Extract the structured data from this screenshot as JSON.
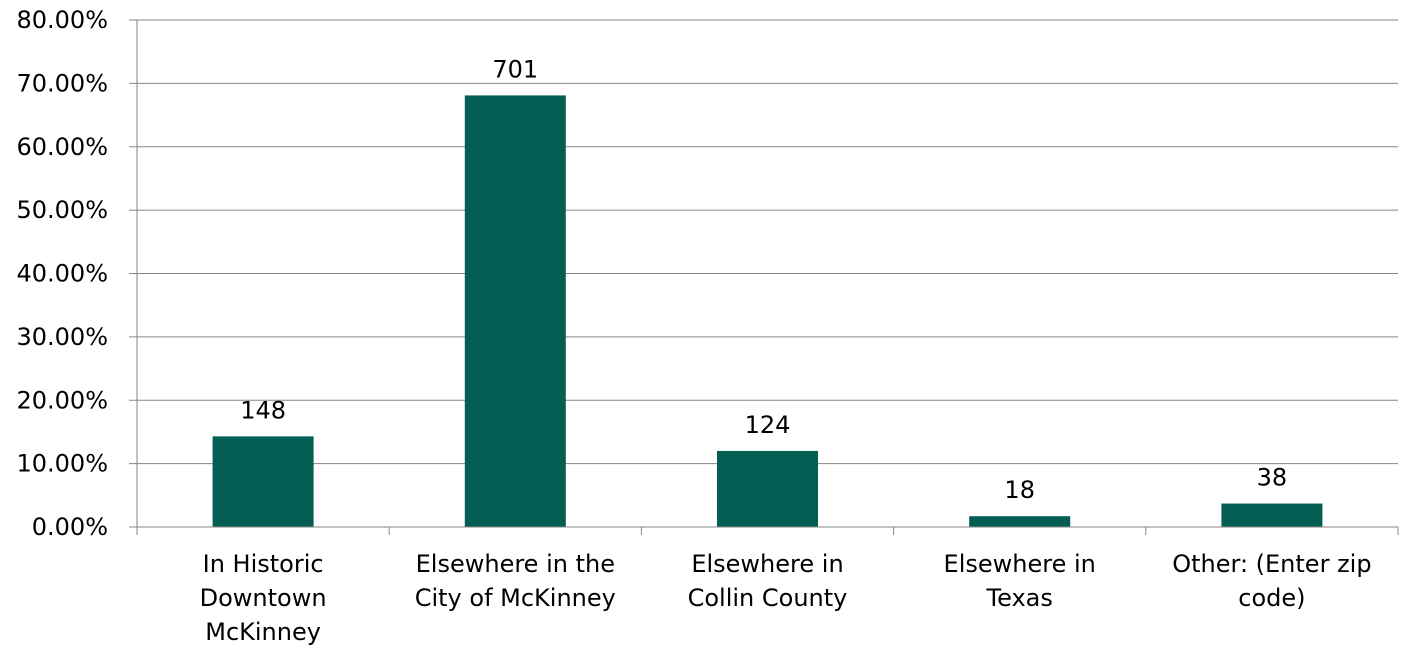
{
  "chart_data": {
    "type": "bar",
    "categories": [
      [
        "In Historic",
        "Downtown",
        "McKinney"
      ],
      [
        "Elsewhere in the",
        "City of McKinney"
      ],
      [
        "Elsewhere in",
        "Collin County"
      ],
      [
        "Elsewhere in",
        "Texas"
      ],
      [
        "Other: (Enter zip",
        "code)"
      ]
    ],
    "values": [
      14.3,
      68.1,
      12.0,
      1.7,
      3.7
    ],
    "data_labels": [
      "148",
      "701",
      "124",
      "18",
      "38"
    ],
    "y_ticks": [
      "0.00%",
      "10.00%",
      "20.00%",
      "30.00%",
      "40.00%",
      "50.00%",
      "60.00%",
      "70.00%",
      "80.00%"
    ],
    "ylim": [
      0,
      80
    ],
    "grid": true,
    "bar_color": "#035E53",
    "gridline_color": "#868686",
    "title": "",
    "xlabel": "",
    "ylabel": ""
  }
}
